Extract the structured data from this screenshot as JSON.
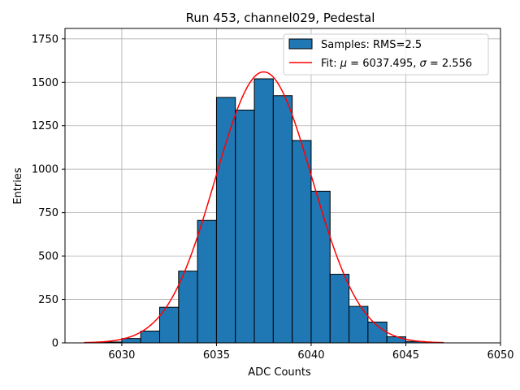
{
  "chart_data": {
    "type": "bar",
    "title": "Run 453, channel029, Pedestal",
    "xlabel": "ADC Counts",
    "ylabel": "Entries",
    "xlim": [
      6027,
      6050
    ],
    "ylim": [
      0,
      1810
    ],
    "xticks": [
      6030,
      6035,
      6040,
      6045,
      6050
    ],
    "yticks": [
      0,
      250,
      500,
      750,
      1000,
      1250,
      1500,
      1750
    ],
    "grid": true,
    "legend_placement": "top-right",
    "bin_width": 1,
    "bins": [
      {
        "left": 6029,
        "value": 5
      },
      {
        "left": 6030,
        "value": 25
      },
      {
        "left": 6031,
        "value": 68
      },
      {
        "left": 6032,
        "value": 205
      },
      {
        "left": 6033,
        "value": 413
      },
      {
        "left": 6034,
        "value": 705
      },
      {
        "left": 6035,
        "value": 1413
      },
      {
        "left": 6036,
        "value": 1340
      },
      {
        "left": 6037,
        "value": 1520
      },
      {
        "left": 6038,
        "value": 1423
      },
      {
        "left": 6039,
        "value": 1165
      },
      {
        "left": 6040,
        "value": 873
      },
      {
        "left": 6041,
        "value": 395
      },
      {
        "left": 6042,
        "value": 210
      },
      {
        "left": 6043,
        "value": 120
      },
      {
        "left": 6044,
        "value": 35
      },
      {
        "left": 6045,
        "value": 8
      }
    ],
    "fit": {
      "mu": 6037.495,
      "sigma": 2.556,
      "amplitude": 1560,
      "xrange": [
        6028,
        6047
      ],
      "color": "#ff0000"
    },
    "bar_color": "#1f77b4",
    "legend": {
      "histogram": "Samples: RMS=2.5",
      "fit_prefix": "Fit: ",
      "fit_mu_symbol": "μ",
      "fit_mu_value": " = 6037.495, ",
      "fit_sigma_symbol": "σ",
      "fit_sigma_value": " = 2.556"
    }
  }
}
